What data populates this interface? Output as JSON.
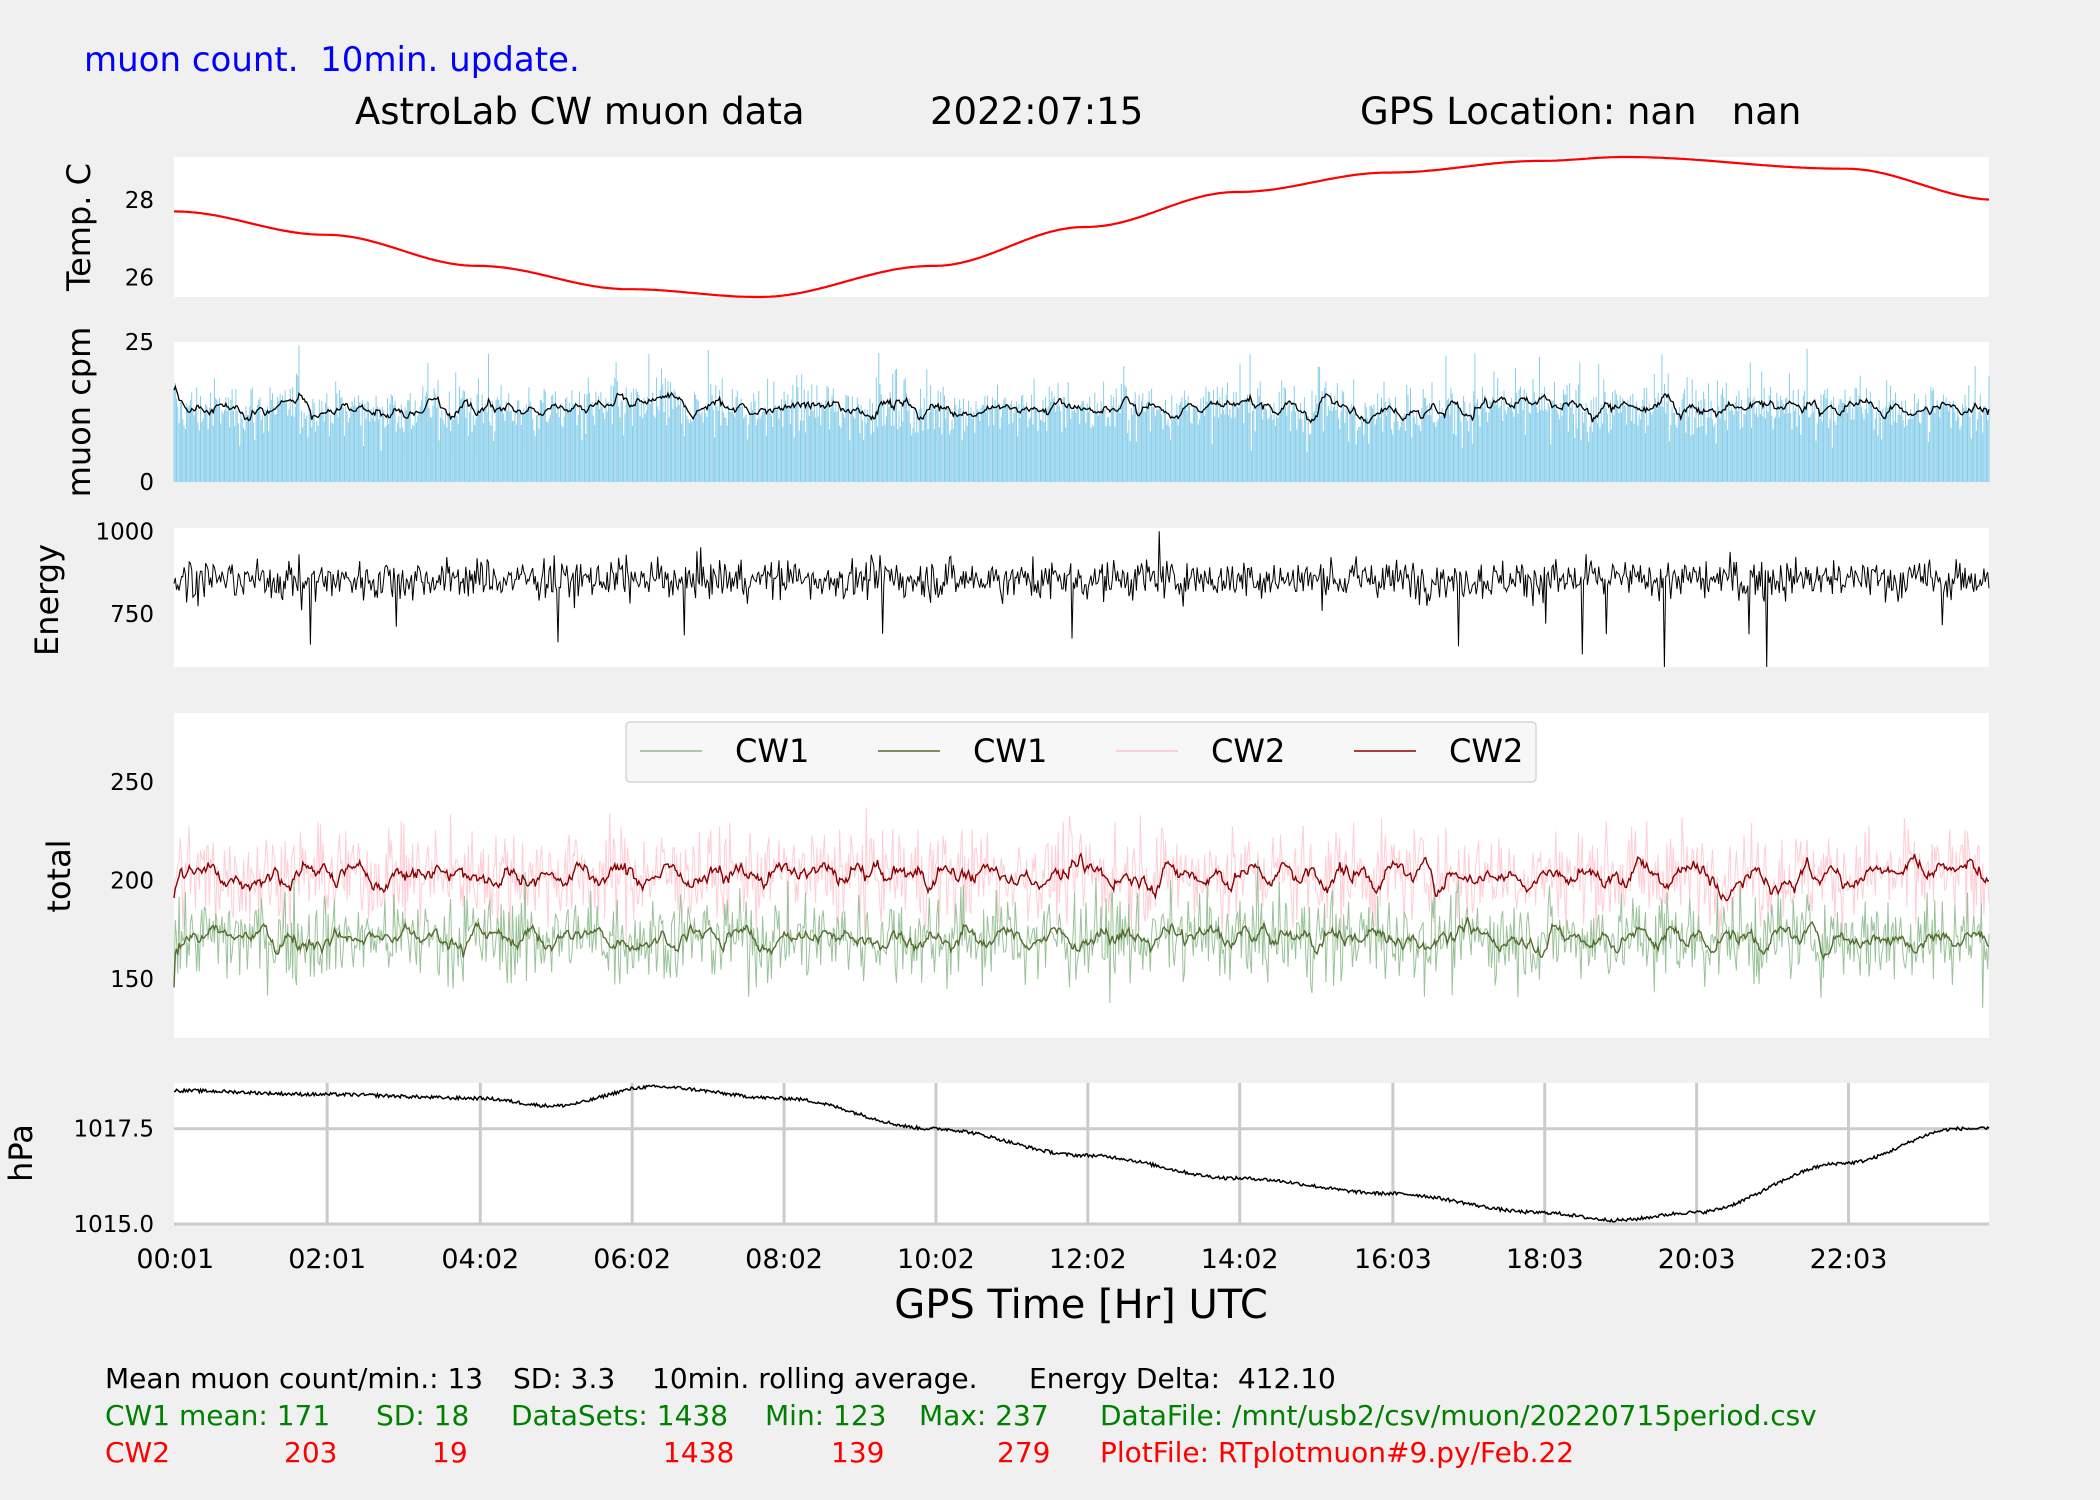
{
  "subtitle": "muon count.  10min. update.",
  "title": {
    "part1": "AstroLab CW muon data",
    "date": "2022:07:15",
    "location": "GPS Location: nan   nan"
  },
  "xlabel": "GPS Time  [Hr] UTC",
  "colors": {
    "background": "#f0f0f0",
    "temp": "#ff0000",
    "muon_bars": "#87ceeb",
    "cw1_raw": "#8fbc8f",
    "cw1_avg": "#556b2f",
    "cw2_raw": "#ffc0cb",
    "cw2_avg": "#8b0000",
    "stats_black": "#000000",
    "stats_green": "#008000",
    "stats_red": "#ff0000"
  },
  "chart_data": [
    {
      "type": "line",
      "ylabel": "Temp. C",
      "yticks": [
        "26",
        "28"
      ],
      "ylim": [
        25.5,
        29.1
      ],
      "series": [
        {
          "x": [
            0,
            2,
            4,
            6,
            7.7,
            10,
            12,
            14,
            16,
            18,
            19.1,
            22,
            24
          ],
          "y": [
            27.7,
            27.1,
            26.3,
            25.7,
            25.5,
            26.3,
            27.3,
            28.2,
            28.7,
            29.0,
            29.1,
            28.8,
            28.0
          ]
        }
      ]
    },
    {
      "type": "bar",
      "ylabel": "muon cpm",
      "yticks": [
        "0",
        "25"
      ],
      "ylim": [
        0,
        25
      ],
      "mean": 13,
      "sd": 3.3,
      "rolling_mean": 13
    },
    {
      "type": "line",
      "ylabel": "Energy",
      "yticks": [
        "750",
        "1000"
      ],
      "ylim": [
        590,
        1010
      ],
      "center": 855,
      "spread": 50,
      "max": 1000,
      "min": 590
    },
    {
      "type": "line",
      "ylabel": "total",
      "yticks": [
        "150",
        "200",
        "250"
      ],
      "ylim": [
        120,
        285
      ],
      "legend": {
        "position": "top",
        "entries": [
          "CW1",
          "CW1",
          "CW2",
          "CW2"
        ]
      },
      "series": [
        {
          "name": "CW1",
          "mean": 171,
          "sd": 18,
          "min": 123,
          "max": 237
        },
        {
          "name": "CW2",
          "mean": 203,
          "sd": 19,
          "min": 139,
          "max": 279
        }
      ]
    },
    {
      "type": "line",
      "ylabel": "hPa",
      "yticks": [
        "1015.0",
        "1017.5"
      ],
      "ylim": [
        1015.0,
        1018.7
      ],
      "grid": true,
      "series": [
        {
          "x": [
            0,
            2,
            4,
            5,
            6.3,
            8,
            10,
            12,
            14,
            16,
            18,
            19,
            20,
            22,
            23.5,
            24
          ],
          "y": [
            1018.5,
            1018.4,
            1018.3,
            1018.1,
            1018.6,
            1018.3,
            1017.5,
            1016.8,
            1016.2,
            1015.8,
            1015.3,
            1015.1,
            1015.3,
            1016.6,
            1017.5,
            1017.5
          ]
        }
      ]
    }
  ],
  "xaxis": {
    "ticks": [
      {
        "t": 0.0167,
        "label": "00:01"
      },
      {
        "t": 2.0167,
        "label": "02:01"
      },
      {
        "t": 4.0333,
        "label": "04:02"
      },
      {
        "t": 6.0333,
        "label": "06:02"
      },
      {
        "t": 8.0333,
        "label": "08:02"
      },
      {
        "t": 10.0333,
        "label": "10:02"
      },
      {
        "t": 12.0333,
        "label": "12:02"
      },
      {
        "t": 14.0333,
        "label": "14:02"
      },
      {
        "t": 16.05,
        "label": "16:03"
      },
      {
        "t": 18.05,
        "label": "18:03"
      },
      {
        "t": 20.05,
        "label": "20:03"
      },
      {
        "t": 22.05,
        "label": "22:03"
      }
    ],
    "xlim": [
      0,
      23.9
    ]
  },
  "stats": {
    "line1": {
      "mean_label": "Mean muon count/min.: 13",
      "sd_label": "SD: 3.3",
      "rolling_label": "10min. rolling average.",
      "energy_label": "Energy Delta:  412.10"
    },
    "cw1": {
      "label": "CW1 mean: 171",
      "sd": "SD: 18",
      "datasets": "DataSets: 1438",
      "min": "Min: 123",
      "max": "Max: 237",
      "file": "DataFile: /mnt/usb2/csv/muon/20220715period.csv"
    },
    "cw2": {
      "label": "CW2",
      "mean": "203",
      "sd": "19",
      "datasets": "1438",
      "min": "139",
      "max": "279",
      "file": "PlotFile: RTplotmuon#9.py/Feb.22"
    }
  }
}
